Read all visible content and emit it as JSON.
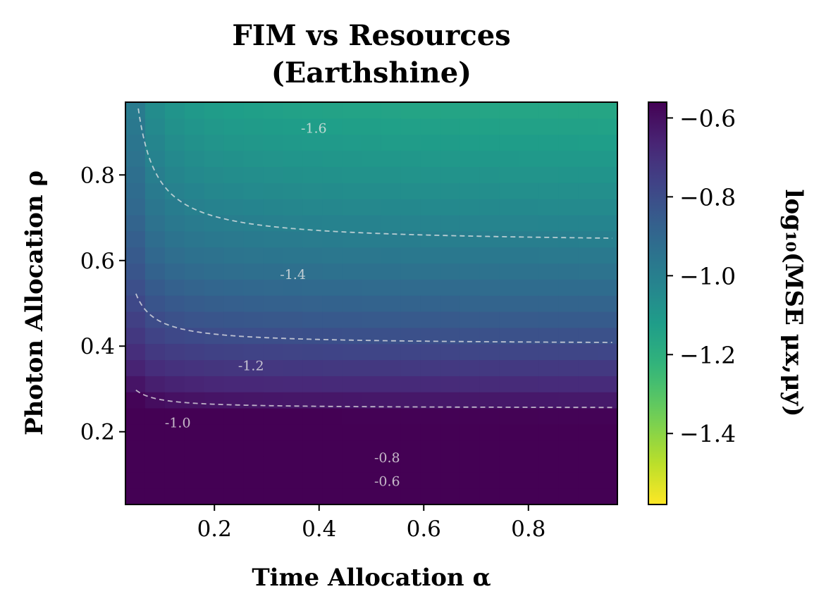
{
  "chart_data": {
    "type": "heatmap",
    "title_lines": [
      "FIM vs Resources",
      "(Earthshine)"
    ],
    "xlabel": "Time Allocation α",
    "ylabel": "Photon Allocation ρ",
    "colorbar_label": "log₁₀(MSE μx,μy)",
    "xlim": [
      0.03,
      0.97
    ],
    "ylim": [
      0.03,
      0.97
    ],
    "xticks": [
      0.2,
      0.4,
      0.6,
      0.8
    ],
    "yticks": [
      0.2,
      0.4,
      0.6,
      0.8
    ],
    "xtick_labels": [
      "0.2",
      "0.4",
      "0.6",
      "0.8"
    ],
    "ytick_labels": [
      "0.2",
      "0.4",
      "0.6",
      "0.8"
    ],
    "colorbar_range": [
      -1.58,
      -0.56
    ],
    "colorbar_ticks": [
      -0.6,
      -0.8,
      -1.0,
      -1.2,
      -1.4
    ],
    "colorbar_tick_labels": [
      "−0.6",
      "−0.8",
      "−1.0",
      "−1.2",
      "−1.4"
    ],
    "colormap": "viridis_r",
    "grid_n": 25,
    "formula": "log10(0.064/rho + 0.0018/alpha)",
    "contours": [
      {
        "level": -1.6,
        "label": "-1.6",
        "label_at": [
          0.39,
          0.91
        ]
      },
      {
        "level": -1.4,
        "label": "-1.4",
        "label_at": [
          0.35,
          0.568
        ]
      },
      {
        "level": -1.2,
        "label": "-1.2",
        "label_at": [
          0.27,
          0.355
        ]
      },
      {
        "level": -1.0,
        "label": "-1.0",
        "label_at": [
          0.13,
          0.222
        ]
      },
      {
        "level": -0.8,
        "label": "-0.8",
        "label_at": [
          0.53,
          0.14
        ]
      },
      {
        "level": -0.6,
        "label": "-0.6",
        "label_at": [
          0.53,
          0.085
        ]
      }
    ],
    "contour_style": "dashed",
    "grid": false
  }
}
